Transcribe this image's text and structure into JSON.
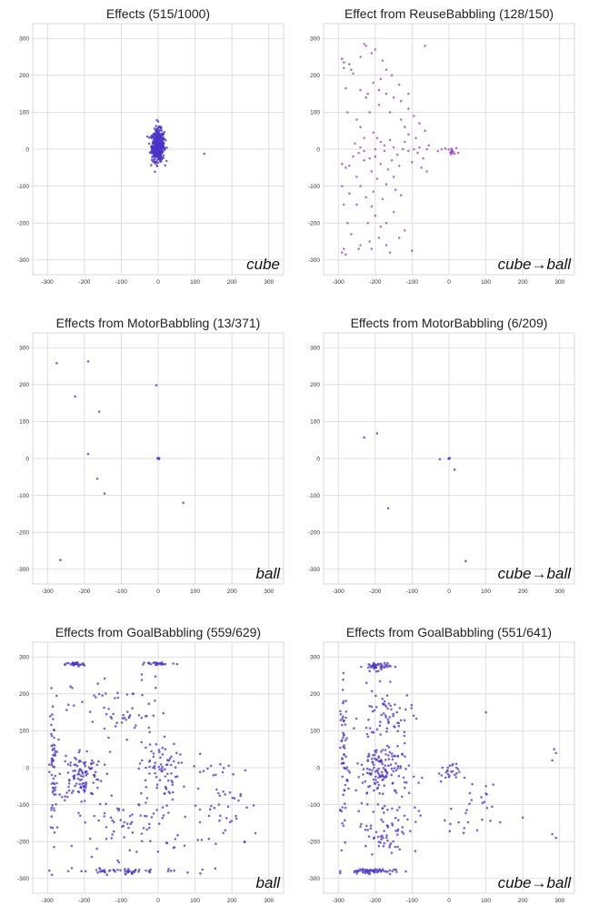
{
  "colors": {
    "point": "#4a35c8",
    "reuse_point": "#a04ab8",
    "grid": "#d8d8d8"
  },
  "chart_data": [
    {
      "type": "scatter",
      "title": "Effects (515/1000)",
      "tag": "cube",
      "xlim": [
        -340,
        340
      ],
      "ylim": [
        -340,
        340
      ],
      "xticks": [
        -300,
        -200,
        -100,
        0,
        100,
        200,
        300
      ],
      "yticks": [
        300,
        200,
        100,
        0,
        -100,
        -200,
        -300
      ],
      "color_key": "point",
      "clusters": [
        {
          "name": "central",
          "center": [
            0,
            10
          ],
          "spread": [
            14,
            35
          ],
          "count": 510
        }
      ],
      "points": [
        [
          125,
          -12
        ],
        [
          0,
          75
        ],
        [
          -5,
          -38
        ],
        [
          8,
          60
        ],
        [
          -18,
          30
        ]
      ]
    },
    {
      "type": "scatter",
      "title": "Effect from ReuseBabbling (128/150)",
      "tag": "cube→ball",
      "xlim": [
        -340,
        340
      ],
      "ylim": [
        -340,
        340
      ],
      "xticks": [
        -300,
        -200,
        -100,
        0,
        100,
        200,
        300
      ],
      "yticks": [
        300,
        200,
        100,
        0,
        -100,
        -200,
        -300
      ],
      "color_key": "reuse_point",
      "clusters": [
        {
          "name": "right-cluster",
          "center": [
            5,
            -5
          ],
          "spread": [
            8,
            6
          ],
          "count": 12
        }
      ],
      "points": [
        [
          -290,
          245
        ],
        [
          -285,
          235
        ],
        [
          -280,
          165
        ],
        [
          -275,
          100
        ],
        [
          -265,
          215
        ],
        [
          -260,
          205
        ],
        [
          -230,
          285
        ],
        [
          -225,
          280
        ],
        [
          -220,
          150
        ],
        [
          -210,
          260
        ],
        [
          -200,
          270
        ],
        [
          -185,
          190
        ],
        [
          -180,
          240
        ],
        [
          -170,
          215
        ],
        [
          -155,
          200
        ],
        [
          -135,
          175
        ],
        [
          -110,
          110
        ],
        [
          -65,
          280
        ],
        [
          -290,
          -280
        ],
        [
          -285,
          -270
        ],
        [
          -280,
          -285
        ],
        [
          -240,
          -260
        ],
        [
          -210,
          -270
        ],
        [
          -170,
          -260
        ],
        [
          -160,
          -280
        ],
        [
          -185,
          -210
        ],
        [
          -100,
          -275
        ],
        [
          -210,
          -155
        ],
        [
          -145,
          -110
        ],
        [
          -130,
          -125
        ],
        [
          -195,
          -80
        ],
        [
          -250,
          -75
        ],
        [
          -270,
          -45
        ],
        [
          -280,
          -50
        ],
        [
          -255,
          15
        ],
        [
          -240,
          5
        ],
        [
          -230,
          -5
        ],
        [
          -215,
          -25
        ],
        [
          -200,
          0
        ],
        [
          -185,
          20
        ],
        [
          -175,
          10
        ],
        [
          -160,
          25
        ],
        [
          -150,
          5
        ],
        [
          -140,
          -15
        ],
        [
          -125,
          0
        ],
        [
          -110,
          -5
        ],
        [
          -95,
          0
        ],
        [
          -85,
          -10
        ],
        [
          -70,
          -25
        ],
        [
          -55,
          10
        ],
        [
          -195,
          30
        ],
        [
          -205,
          45
        ],
        [
          -185,
          -40
        ],
        [
          -165,
          -55
        ],
        [
          -240,
          -100
        ],
        [
          -225,
          -130
        ],
        [
          -205,
          -115
        ],
        [
          -180,
          -135
        ],
        [
          -110,
          40
        ],
        [
          -120,
          60
        ],
        [
          -60,
          0
        ],
        [
          -80,
          5
        ],
        [
          -240,
          60
        ],
        [
          -250,
          80
        ],
        [
          -215,
          100
        ],
        [
          -190,
          120
        ],
        [
          -230,
          -30
        ],
        [
          -210,
          -60
        ],
        [
          -260,
          -20
        ],
        [
          -150,
          -75
        ],
        [
          -170,
          -95
        ],
        [
          -200,
          -180
        ],
        [
          -220,
          -200
        ],
        [
          -250,
          -150
        ],
        [
          -270,
          -120
        ],
        [
          -130,
          80
        ],
        [
          -160,
          100
        ],
        [
          -230,
          30
        ],
        [
          -245,
          -10
        ],
        [
          -200,
          -20
        ],
        [
          -175,
          -5
        ],
        [
          -155,
          -30
        ],
        [
          -135,
          -45
        ],
        [
          -120,
          20
        ],
        [
          -100,
          -35
        ],
        [
          -90,
          30
        ],
        [
          -75,
          -50
        ],
        [
          -60,
          -60
        ],
        [
          -240,
          250
        ],
        [
          -270,
          230
        ],
        [
          -285,
          220
        ],
        [
          -290,
          -40
        ],
        [
          -290,
          -100
        ],
        [
          -285,
          -150
        ],
        [
          -20,
          0
        ],
        [
          -30,
          -5
        ],
        [
          -10,
          2
        ],
        [
          20,
          3
        ],
        [
          15,
          -12
        ],
        [
          25,
          -10
        ],
        [
          -150,
          -170
        ],
        [
          -120,
          -220
        ],
        [
          -135,
          -240
        ],
        [
          -170,
          -200
        ],
        [
          -190,
          -240
        ],
        [
          -215,
          -250
        ],
        [
          -245,
          -270
        ],
        [
          -265,
          -230
        ],
        [
          -275,
          -200
        ],
        [
          -240,
          160
        ],
        [
          -225,
          140
        ],
        [
          -205,
          180
        ],
        [
          -190,
          160
        ],
        [
          -170,
          150
        ],
        [
          -150,
          140
        ],
        [
          -130,
          130
        ],
        [
          -110,
          150
        ],
        [
          -95,
          90
        ],
        [
          -80,
          70
        ],
        [
          -65,
          50
        ]
      ]
    },
    {
      "type": "scatter",
      "title": "Effects from MotorBabbling (13/371)",
      "tag": "ball",
      "xlim": [
        -340,
        340
      ],
      "ylim": [
        -340,
        340
      ],
      "xticks": [
        -300,
        -200,
        -100,
        0,
        100,
        200,
        300
      ],
      "yticks": [
        300,
        200,
        100,
        0,
        -100,
        -200,
        -300
      ],
      "color_key": "point",
      "clusters": [],
      "points": [
        [
          -275,
          258
        ],
        [
          -190,
          263
        ],
        [
          -225,
          168
        ],
        [
          -160,
          127
        ],
        [
          -5,
          198
        ],
        [
          -190,
          12
        ],
        [
          -165,
          -55
        ],
        [
          -145,
          -95
        ],
        [
          -265,
          -275
        ],
        [
          68,
          -120
        ],
        [
          0,
          0
        ],
        [
          2,
          -2
        ],
        [
          -2,
          1
        ],
        [
          3,
          1
        ]
      ]
    },
    {
      "type": "scatter",
      "title": "Effects from MotorBabbling (6/209)",
      "tag": "cube→ball",
      "xlim": [
        -340,
        340
      ],
      "ylim": [
        -340,
        340
      ],
      "xticks": [
        -300,
        -200,
        -100,
        0,
        100,
        200,
        300
      ],
      "yticks": [
        300,
        200,
        100,
        0,
        -100,
        -200,
        -300
      ],
      "color_key": "point",
      "clusters": [],
      "points": [
        [
          -230,
          57
        ],
        [
          -195,
          68
        ],
        [
          -25,
          -2
        ],
        [
          15,
          -30
        ],
        [
          -165,
          -135
        ],
        [
          45,
          -278
        ],
        [
          0,
          0
        ],
        [
          2,
          1
        ],
        [
          -1,
          -1
        ]
      ]
    },
    {
      "type": "scatter",
      "title": "Effects from GoalBabbling (559/629)",
      "tag": "ball",
      "xlim": [
        -340,
        340
      ],
      "ylim": [
        -340,
        340
      ],
      "xticks": [
        -300,
        -200,
        -100,
        0,
        100,
        200,
        300
      ],
      "yticks": [
        300,
        200,
        100,
        0,
        -100,
        -200,
        -300
      ],
      "color_key": "point",
      "clusters": [
        {
          "name": "left-column",
          "center": [
            -285,
            0
          ],
          "spread": [
            8,
            160
          ],
          "count": 60
        },
        {
          "name": "top-left",
          "center": [
            -225,
            280
          ],
          "spread": [
            22,
            5
          ],
          "count": 35
        },
        {
          "name": "top-middle",
          "center": [
            0,
            282
          ],
          "spread": [
            40,
            4
          ],
          "count": 25
        },
        {
          "name": "mid-left",
          "center": [
            -210,
            -20
          ],
          "spread": [
            50,
            60
          ],
          "count": 110
        },
        {
          "name": "center",
          "center": [
            0,
            0
          ],
          "spread": [
            45,
            60
          ],
          "count": 70
        },
        {
          "name": "upper-scatter",
          "center": [
            -100,
            150
          ],
          "spread": [
            110,
            80
          ],
          "count": 60
        },
        {
          "name": "lower-scatter",
          "center": [
            -60,
            -150
          ],
          "spread": [
            130,
            80
          ],
          "count": 80
        },
        {
          "name": "bottom",
          "center": [
            -100,
            -280
          ],
          "spread": [
            140,
            6
          ],
          "count": 55
        },
        {
          "name": "right",
          "center": [
            180,
            -100
          ],
          "spread": [
            80,
            110
          ],
          "count": 55
        }
      ],
      "points": []
    },
    {
      "type": "scatter",
      "title": "Effects from GoalBabbling (551/641)",
      "tag": "cube→ball",
      "xlim": [
        -340,
        340
      ],
      "ylim": [
        -340,
        340
      ],
      "xticks": [
        -300,
        -200,
        -100,
        0,
        100,
        200,
        300
      ],
      "yticks": [
        300,
        200,
        100,
        0,
        -100,
        -200,
        -300
      ],
      "color_key": "point",
      "clusters": [
        {
          "name": "left-column",
          "center": [
            -285,
            40
          ],
          "spread": [
            8,
            150
          ],
          "count": 60
        },
        {
          "name": "top",
          "center": [
            -195,
            275
          ],
          "spread": [
            30,
            10
          ],
          "count": 45
        },
        {
          "name": "mid",
          "center": [
            -180,
            -10
          ],
          "spread": [
            60,
            70
          ],
          "count": 150
        },
        {
          "name": "upper",
          "center": [
            -170,
            140
          ],
          "spread": [
            60,
            60
          ],
          "count": 60
        },
        {
          "name": "lower",
          "center": [
            -170,
            -160
          ],
          "spread": [
            70,
            60
          ],
          "count": 70
        },
        {
          "name": "bottom",
          "center": [
            -220,
            -280
          ],
          "spread": [
            60,
            6
          ],
          "count": 60
        },
        {
          "name": "near-origin",
          "center": [
            0,
            -15
          ],
          "spread": [
            25,
            20
          ],
          "count": 25
        },
        {
          "name": "right-lower",
          "center": [
            60,
            -130
          ],
          "spread": [
            50,
            70
          ],
          "count": 25
        }
      ],
      "points": [
        [
          285,
          50
        ],
        [
          290,
          40
        ],
        [
          280,
          20
        ],
        [
          290,
          -190
        ],
        [
          280,
          -180
        ],
        [
          200,
          -135
        ],
        [
          100,
          -50
        ],
        [
          100,
          -70
        ],
        [
          100,
          150
        ]
      ]
    }
  ]
}
